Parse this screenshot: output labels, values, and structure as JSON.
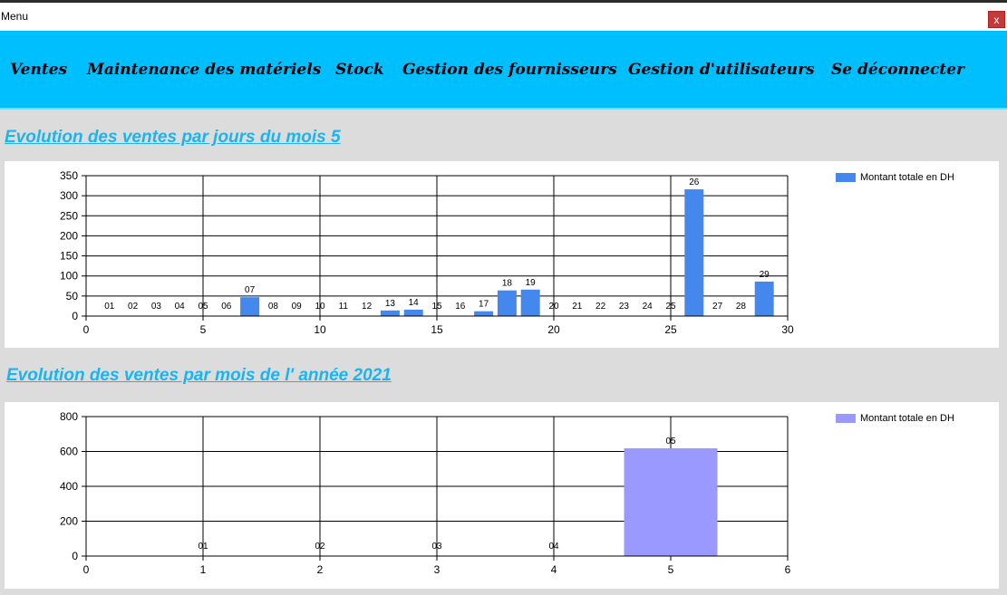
{
  "window": {
    "title": "Menu",
    "close_label": "x"
  },
  "menu": [
    {
      "label": "Ventes"
    },
    {
      "label": "Maintenance des matériels"
    },
    {
      "label": "Stock"
    },
    {
      "label": "Gestion des fournisseurs"
    },
    {
      "label": "Gestion d'utilisateurs"
    },
    {
      "label": "Se déconnecter"
    }
  ],
  "colors": {
    "accent": "#00bfff",
    "heading": "#1ab4f0",
    "series1": "#4488ee",
    "series2": "#9999ff",
    "close": "#c23a3a"
  },
  "chart_data": [
    {
      "type": "bar",
      "title": "Evolution des ventes par  jours  du  mois 5",
      "legend": "Montant totale en DH",
      "legend_position": "top-right",
      "grid": true,
      "xlim": [
        0,
        30
      ],
      "ylim": [
        0,
        350
      ],
      "xticks": [
        0,
        5,
        10,
        15,
        20,
        25,
        30
      ],
      "yticks": [
        0,
        50,
        100,
        150,
        200,
        250,
        300,
        350
      ],
      "points": [
        {
          "x": 1,
          "label": "01",
          "value": 0
        },
        {
          "x": 2,
          "label": "02",
          "value": 0
        },
        {
          "x": 3,
          "label": "03",
          "value": 0
        },
        {
          "x": 4,
          "label": "04",
          "value": 0
        },
        {
          "x": 5,
          "label": "05",
          "value": 0
        },
        {
          "x": 6,
          "label": "06",
          "value": 0
        },
        {
          "x": 7,
          "label": "07",
          "value": 47
        },
        {
          "x": 8,
          "label": "08",
          "value": 0
        },
        {
          "x": 9,
          "label": "09",
          "value": 0
        },
        {
          "x": 10,
          "label": "10",
          "value": 0
        },
        {
          "x": 11,
          "label": "11",
          "value": 0
        },
        {
          "x": 12,
          "label": "12",
          "value": 0
        },
        {
          "x": 13,
          "label": "13",
          "value": 14
        },
        {
          "x": 14,
          "label": "14",
          "value": 16
        },
        {
          "x": 15,
          "label": "15",
          "value": 0
        },
        {
          "x": 16,
          "label": "16",
          "value": 0
        },
        {
          "x": 17,
          "label": "17",
          "value": 12
        },
        {
          "x": 18,
          "label": "18",
          "value": 64
        },
        {
          "x": 19,
          "label": "19",
          "value": 66
        },
        {
          "x": 20,
          "label": "20",
          "value": 0
        },
        {
          "x": 21,
          "label": "21",
          "value": 0
        },
        {
          "x": 22,
          "label": "22",
          "value": 0
        },
        {
          "x": 23,
          "label": "23",
          "value": 0
        },
        {
          "x": 24,
          "label": "24",
          "value": 0
        },
        {
          "x": 25,
          "label": "25",
          "value": 0
        },
        {
          "x": 26,
          "label": "26",
          "value": 316
        },
        {
          "x": 27,
          "label": "27",
          "value": 0
        },
        {
          "x": 28,
          "label": "28",
          "value": 0
        },
        {
          "x": 29,
          "label": "29",
          "value": 86
        }
      ]
    },
    {
      "type": "bar",
      "title": "Evolution des ventes par mois de l' année 2021",
      "legend": "Montant totale en DH",
      "legend_position": "top-right",
      "grid": true,
      "xlim": [
        0,
        6
      ],
      "ylim": [
        0,
        800
      ],
      "xticks": [
        0,
        1,
        2,
        3,
        4,
        5,
        6
      ],
      "yticks": [
        0,
        200,
        400,
        600,
        800
      ],
      "points": [
        {
          "x": 1,
          "label": "01",
          "value": 0
        },
        {
          "x": 2,
          "label": "02",
          "value": 0
        },
        {
          "x": 3,
          "label": "03",
          "value": 0
        },
        {
          "x": 4,
          "label": "04",
          "value": 0
        },
        {
          "x": 5,
          "label": "05",
          "value": 618
        }
      ]
    }
  ]
}
